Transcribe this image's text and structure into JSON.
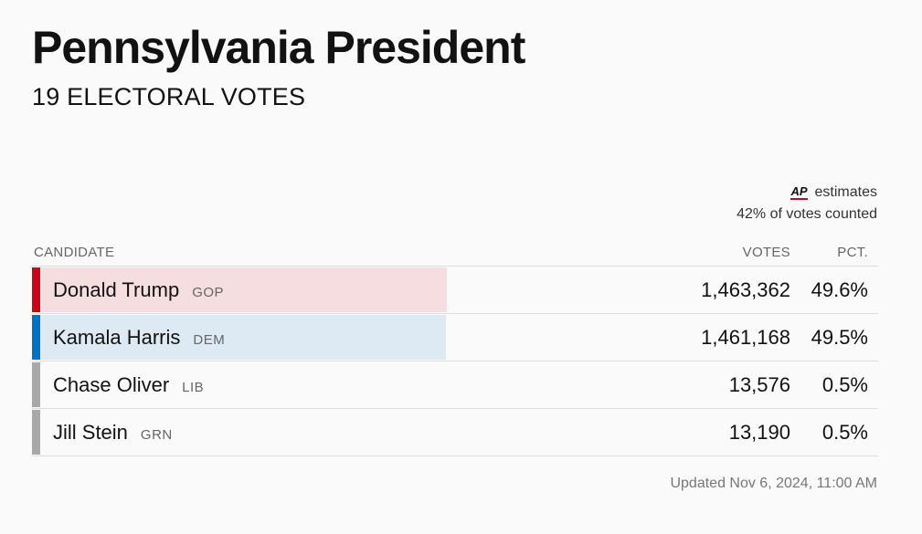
{
  "header": {
    "title": "Pennsylvania President",
    "subtitle": "19 ELECTORAL VOTES"
  },
  "estimate": {
    "logo": "AP",
    "label": "estimates",
    "counted": "42% of votes counted"
  },
  "table": {
    "columns": {
      "candidate": "CANDIDATE",
      "votes": "VOTES",
      "pct": "PCT."
    },
    "rows": [
      {
        "name": "Donald Trump",
        "party": "GOP",
        "votes": "1,463,362",
        "pct": "49.6%",
        "pct_value": 49.6,
        "stripe_color": "#d0021b",
        "bar_color": "#f5dde0"
      },
      {
        "name": "Kamala Harris",
        "party": "DEM",
        "votes": "1,461,168",
        "pct": "49.5%",
        "pct_value": 49.5,
        "stripe_color": "#0072c6",
        "bar_color": "#dde9f3"
      },
      {
        "name": "Chase Oliver",
        "party": "LIB",
        "votes": "13,576",
        "pct": "0.5%",
        "pct_value": 0.5,
        "stripe_color": "#a8a8a8",
        "bar_color": "#fafafa"
      },
      {
        "name": "Jill Stein",
        "party": "GRN",
        "votes": "13,190",
        "pct": "0.5%",
        "pct_value": 0.5,
        "stripe_color": "#a8a8a8",
        "bar_color": "#fafafa"
      }
    ]
  },
  "footer": {
    "updated": "Updated Nov 6, 2024, 11:00 AM"
  }
}
